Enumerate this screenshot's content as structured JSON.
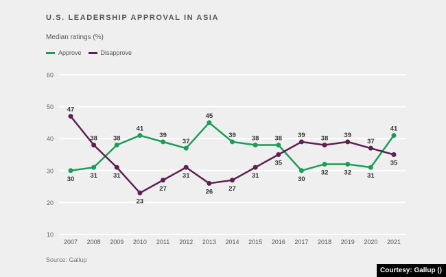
{
  "chart_data": {
    "type": "line",
    "title": "U.S. LEADERSHIP APPROVAL IN ASIA",
    "subtitle": "Median ratings (%)",
    "xlabel": "",
    "ylabel": "",
    "x": [
      "2007",
      "2008",
      "2009",
      "2010",
      "2011",
      "2012",
      "2013",
      "2014",
      "2015",
      "2016",
      "2017",
      "2018",
      "2019",
      "2020",
      "2021"
    ],
    "ylim": [
      10,
      60
    ],
    "yticks": [
      10,
      20,
      30,
      40,
      50,
      60
    ],
    "grid": true,
    "legend_position": "top-left",
    "series": [
      {
        "name": "Approve",
        "color": "#1a9e55",
        "values": [
          30,
          31,
          38,
          41,
          39,
          37,
          45,
          39,
          38,
          38,
          30,
          32,
          32,
          31,
          41
        ]
      },
      {
        "name": "Disapprove",
        "color": "#5c2150",
        "values": [
          47,
          38,
          31,
          23,
          27,
          31,
          26,
          27,
          31,
          35,
          39,
          38,
          39,
          37,
          35
        ]
      }
    ]
  },
  "source": "Source: Gallup",
  "courtesy": "Courtesy: Gallup ()"
}
